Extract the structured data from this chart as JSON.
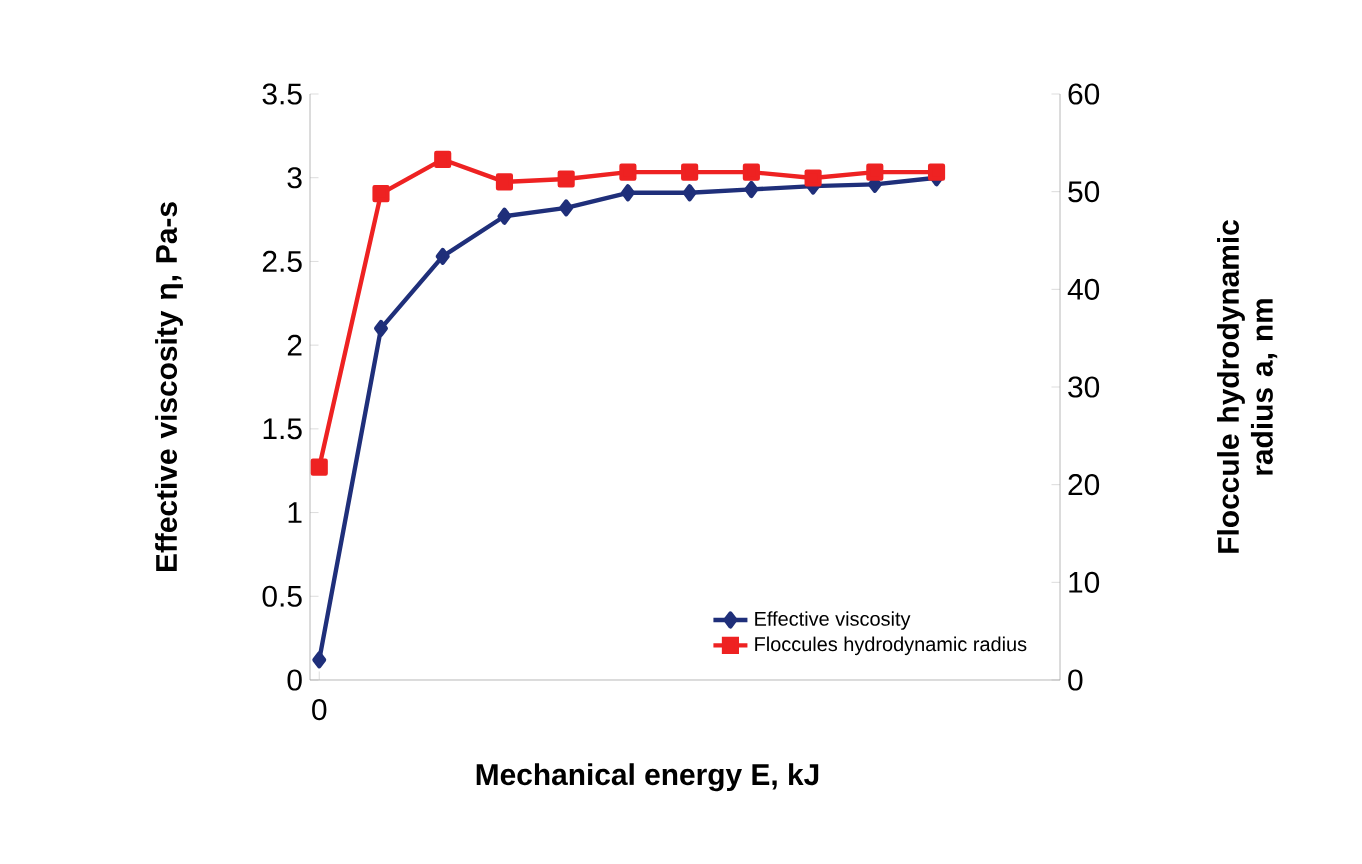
{
  "chart_data": {
    "type": "line",
    "xlabel": "Mechanical energy E, kJ",
    "ylabel": "Effective viscosity  η, Pa-s",
    "y2label": "Floccule hydrodynamic radius a, nm",
    "categories": [
      "0",
      null,
      null,
      null,
      null,
      null,
      null,
      null,
      null,
      null,
      null
    ],
    "series": [
      {
        "name": "Effective viscosity",
        "color": "#1f2f7a",
        "marker": "diamond",
        "values": [
          0.12,
          2.1,
          2.53,
          2.77,
          2.82,
          2.91,
          2.91,
          2.93,
          2.95,
          2.96,
          3.0
        ]
      },
      {
        "name": "Floccules hydrodynamic radius",
        "color": "#ee2222",
        "marker": "square",
        "axis": "y2",
        "values": [
          21.8,
          49.8,
          53.3,
          51.0,
          51.3,
          52.0,
          52.0,
          52.0,
          51.4,
          52.0,
          52.0
        ]
      }
    ],
    "ylim": [
      0,
      3.5
    ],
    "yticks": [
      0,
      0.5,
      1,
      1.5,
      2,
      2.5,
      3,
      3.5
    ],
    "y2lim": [
      0,
      60
    ],
    "y2ticks": [
      0,
      10,
      20,
      30,
      40,
      50,
      60
    ],
    "legend": "bottom right",
    "grid": false
  }
}
